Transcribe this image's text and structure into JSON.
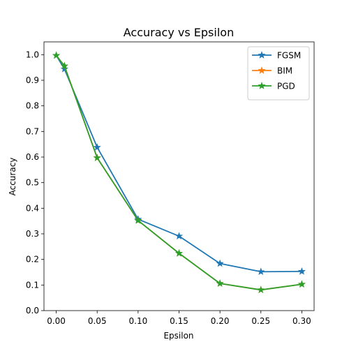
{
  "chart_data": {
    "type": "line",
    "title": "Accuracy vs Epsilon",
    "xlabel": "Epsilon",
    "ylabel": "Accuracy",
    "x": [
      0.0,
      0.01,
      0.05,
      0.1,
      0.15,
      0.2,
      0.25,
      0.3
    ],
    "xlim": [
      -0.015,
      0.315
    ],
    "ylim": [
      0.0,
      1.05
    ],
    "xticks": [
      "0.00",
      "0.05",
      "0.10",
      "0.15",
      "0.20",
      "0.25",
      "0.30"
    ],
    "yticks": [
      "0.0",
      "0.1",
      "0.2",
      "0.3",
      "0.4",
      "0.5",
      "0.6",
      "0.7",
      "0.8",
      "0.9",
      "1.0"
    ],
    "grid": false,
    "legend_position": "top-right",
    "marker": "star",
    "series": [
      {
        "name": "FGSM",
        "color": "#1f77b4",
        "values": [
          0.997,
          0.944,
          0.638,
          0.357,
          0.291,
          0.184,
          0.152,
          0.153
        ]
      },
      {
        "name": "BIM",
        "color": "#ff7f0e",
        "values": [
          0.997,
          0.956,
          0.597,
          0.352,
          0.224,
          0.106,
          0.081,
          0.103
        ]
      },
      {
        "name": "PGD",
        "color": "#2ca02c",
        "values": [
          0.997,
          0.956,
          0.597,
          0.352,
          0.224,
          0.106,
          0.081,
          0.103
        ]
      }
    ]
  }
}
